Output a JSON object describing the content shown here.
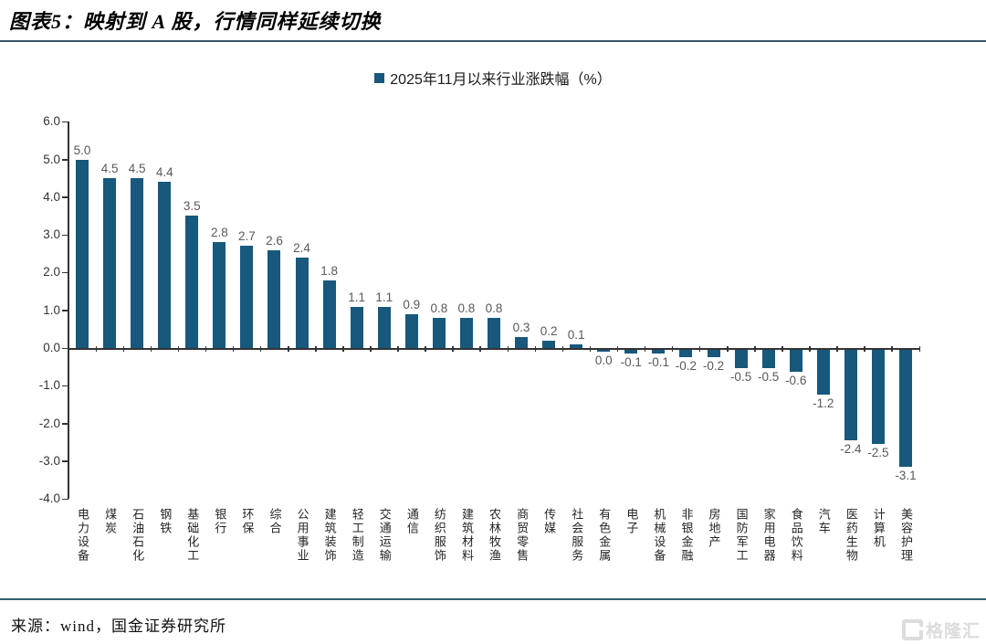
{
  "page": {
    "title": "图表5：映射到 A 股，行情同样延续切换",
    "source": "来源：wind，国金证券研究所",
    "watermark": "格隆汇"
  },
  "colors": {
    "bar": "#17587C",
    "title_rule": "#3C5368",
    "footer_rule": "#2F6070",
    "value_label": "#595959",
    "axis_text": "#333333",
    "watermark": "#DCDCDC"
  },
  "chart_data": {
    "type": "bar",
    "title": "",
    "legend": [
      "2025年11月以来行业涨跌幅（%）"
    ],
    "legend_position": "top-center",
    "grid": false,
    "ylim": [
      -4.0,
      6.0
    ],
    "ytick_step": 1.0,
    "yticks": [
      "6.0",
      "5.0",
      "4.0",
      "3.0",
      "2.0",
      "1.0",
      "0.0",
      "-1.0",
      "-2.0",
      "-3.0",
      "-4.0"
    ],
    "categories": [
      "电力设备",
      "煤炭",
      "石油石化",
      "钢铁",
      "基础化工",
      "银行",
      "环保",
      "综合",
      "公用事业",
      "建筑装饰",
      "轻工制造",
      "交通运输",
      "通信",
      "纺织服饰",
      "建筑材料",
      "农林牧渔",
      "商贸零售",
      "传媒",
      "社会服务",
      "有色金属",
      "电子",
      "机械设备",
      "非银金融",
      "房地产",
      "国防军工",
      "家用电器",
      "食品饮料",
      "汽车",
      "医药生物",
      "计算机",
      "美容护理"
    ],
    "values": [
      5.0,
      4.5,
      4.5,
      4.4,
      3.5,
      2.8,
      2.7,
      2.6,
      2.4,
      1.8,
      1.1,
      1.1,
      0.9,
      0.8,
      0.8,
      0.8,
      0.3,
      0.2,
      0.1,
      0.0,
      -0.1,
      -0.1,
      -0.2,
      -0.2,
      -0.5,
      -0.5,
      -0.6,
      -1.2,
      -2.4,
      -2.5,
      -3.1
    ]
  }
}
